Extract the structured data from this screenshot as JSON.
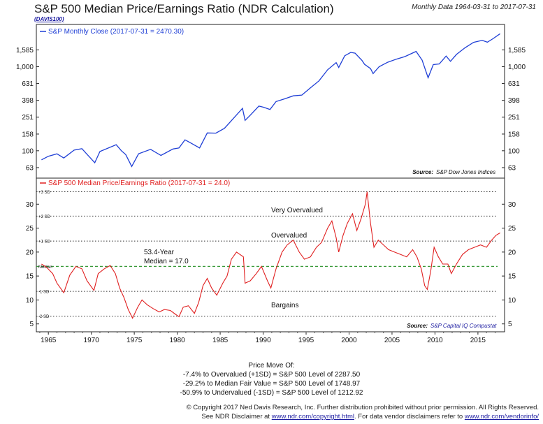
{
  "header": {
    "title": "S&P 500 Median Price/Earnings Ratio (NDR Calculation)",
    "code": "(DAVIS100)",
    "range": "Monthly Data 1964-03-31 to 2017-07-31"
  },
  "chart_data": [
    {
      "type": "line",
      "title": "",
      "scale": "log",
      "ylim": [
        52,
        2300
      ],
      "xlim": [
        1963.6,
        2018.1
      ],
      "y_ticks": [
        "63",
        "100",
        "158",
        "251",
        "398",
        "631",
        "1,000",
        "1,585"
      ],
      "y_tick_values": [
        63,
        100,
        158,
        251,
        398,
        631,
        1000,
        1585
      ],
      "grid": false,
      "legend": "top-left",
      "legend_label": "S&P Monthly Close (2017-07-31 = 2470.30)",
      "source_label": "Source:",
      "source_text": "S&P Dow Jones Indices",
      "series": [
        {
          "name": "S&P Monthly Close",
          "color": "#1f3fd6",
          "x": [
            1964.2,
            1965.0,
            1966.0,
            1966.8,
            1968.0,
            1968.9,
            1970.4,
            1971.0,
            1972.9,
            1973.5,
            1974.0,
            1974.7,
            1975.5,
            1976.9,
            1978.1,
            1979.5,
            1980.2,
            1980.9,
            1981.5,
            1982.6,
            1983.5,
            1984.5,
            1985.5,
            1986.5,
            1987.6,
            1987.9,
            1988.5,
            1989.5,
            1990.0,
            1990.8,
            1991.5,
            1992.5,
            1993.5,
            1994.5,
            1995.5,
            1996.5,
            1997.5,
            1998.5,
            1998.8,
            1999.5,
            2000.2,
            2000.7,
            2001.5,
            2001.8,
            2002.5,
            2002.8,
            2003.5,
            2004.5,
            2005.5,
            2006.5,
            2007.8,
            2008.5,
            2009.2,
            2009.8,
            2010.5,
            2011.3,
            2011.8,
            2012.5,
            2013.5,
            2014.5,
            2015.5,
            2016.1,
            2016.8,
            2017.58
          ],
          "values": [
            78,
            86,
            92,
            82,
            102,
            106,
            72,
            98,
            118,
            100,
            90,
            65,
            92,
            104,
            88,
            105,
            108,
            135,
            125,
            108,
            163,
            162,
            185,
            240,
            320,
            230,
            265,
            340,
            330,
            310,
            385,
            415,
            450,
            460,
            560,
            680,
            920,
            1120,
            980,
            1350,
            1480,
            1450,
            1190,
            1070,
            950,
            830,
            1000,
            1130,
            1230,
            1320,
            1520,
            1200,
            740,
            1060,
            1080,
            1340,
            1160,
            1400,
            1680,
            1950,
            2060,
            1960,
            2170,
            2470
          ]
        }
      ]
    },
    {
      "type": "line",
      "title": "",
      "ylim": [
        3.5,
        35
      ],
      "xlim": [
        1963.6,
        2018.1
      ],
      "y_ticks": [
        "5",
        "10",
        "15",
        "20",
        "25",
        "30"
      ],
      "y_tick_values": [
        5,
        10,
        15,
        20,
        25,
        30
      ],
      "x_ticks": [
        "1965",
        "1970",
        "1975",
        "1980",
        "1985",
        "1990",
        "1995",
        "2000",
        "2005",
        "2010",
        "2015"
      ],
      "x_tick_values": [
        1965,
        1970,
        1975,
        1980,
        1985,
        1990,
        1995,
        2000,
        2005,
        2010,
        2015
      ],
      "grid": false,
      "legend": "top-left",
      "legend_label": "S&P 500 Median Price/Earnings Ratio (2017-07-31 = 24.0)",
      "source_label": "Source:",
      "source_text": "S&P Capital IQ Compustat",
      "reference_lines": [
        {
          "label": "+3 SD",
          "value": 32.6,
          "style": "dotted",
          "color": "#333333"
        },
        {
          "label": "+2 SD",
          "value": 27.5,
          "style": "dotted",
          "color": "#333333"
        },
        {
          "label": "+1 SD",
          "value": 22.3,
          "style": "dotted",
          "color": "#333333"
        },
        {
          "label": "Median",
          "value": 17.0,
          "style": "dashed",
          "color": "#3a9a3a"
        },
        {
          "label": "-1 SD",
          "value": 11.8,
          "style": "dotted",
          "color": "#333333"
        },
        {
          "label": "-2 SD",
          "value": 6.6,
          "style": "dotted",
          "color": "#333333"
        }
      ],
      "annotations": {
        "very_overvalued": "Very Overvalued",
        "overvalued": "Overvalued",
        "median_line1": "53.4-Year",
        "median_line2": "Median = 17.0",
        "bargains": "Bargains"
      },
      "series": [
        {
          "name": "S&P 500 Median Price/Earnings Ratio",
          "color": "#e02020",
          "x": [
            1964.2,
            1964.8,
            1965.5,
            1966.0,
            1966.8,
            1967.5,
            1968.2,
            1968.9,
            1969.5,
            1970.3,
            1970.8,
            1971.5,
            1972.2,
            1972.8,
            1973.3,
            1973.8,
            1974.3,
            1974.8,
            1975.4,
            1975.9,
            1976.5,
            1977.2,
            1977.9,
            1978.5,
            1979.2,
            1979.8,
            1980.2,
            1980.7,
            1981.3,
            1982.0,
            1982.5,
            1983.0,
            1983.5,
            1984.0,
            1984.6,
            1985.3,
            1985.8,
            1986.3,
            1986.9,
            1987.7,
            1987.9,
            1988.5,
            1989.2,
            1989.8,
            1990.5,
            1990.9,
            1991.5,
            1992.2,
            1992.8,
            1993.5,
            1994.2,
            1994.8,
            1995.5,
            1996.2,
            1996.8,
            1997.5,
            1998.0,
            1998.5,
            1998.8,
            1999.3,
            1999.8,
            2000.4,
            2000.9,
            2001.4,
            2001.9,
            2002.1,
            2002.5,
            2002.9,
            2003.4,
            2004.0,
            2004.6,
            2005.3,
            2006.0,
            2006.7,
            2007.4,
            2007.9,
            2008.4,
            2008.8,
            2009.1,
            2009.5,
            2009.9,
            2010.4,
            2010.9,
            2011.5,
            2011.9,
            2012.5,
            2013.2,
            2013.9,
            2014.6,
            2015.3,
            2016.0,
            2016.6,
            2017.1,
            2017.58
          ],
          "values": [
            17.5,
            16.8,
            15.5,
            13.5,
            11.5,
            15.2,
            17.0,
            16.5,
            14.0,
            12.0,
            15.5,
            16.5,
            17.2,
            15.5,
            12.5,
            10.5,
            8.0,
            6.2,
            8.5,
            10.0,
            9.0,
            8.2,
            7.5,
            8.0,
            7.8,
            7.0,
            6.5,
            8.5,
            8.8,
            7.2,
            9.5,
            13.0,
            14.5,
            12.5,
            11.0,
            13.5,
            15.0,
            18.5,
            20.0,
            19.0,
            13.5,
            14.0,
            15.5,
            17.0,
            14.0,
            12.5,
            16.5,
            20.0,
            21.5,
            22.5,
            20.0,
            18.5,
            19.0,
            21.0,
            22.0,
            25.0,
            26.5,
            23.0,
            20.0,
            23.5,
            26.0,
            28.0,
            24.5,
            27.0,
            30.0,
            32.6,
            26.0,
            21.0,
            22.5,
            21.5,
            20.5,
            20.0,
            19.5,
            19.0,
            20.5,
            19.0,
            16.5,
            13.0,
            12.2,
            16.0,
            21.0,
            19.0,
            17.5,
            17.5,
            15.5,
            17.5,
            19.5,
            20.5,
            21.0,
            21.5,
            21.0,
            22.5,
            23.5,
            24.0
          ]
        }
      ]
    }
  ],
  "price_move": {
    "title": "Price Move Of:",
    "line1": "-7.4% to Overvalued (+1SD) = S&P 500 Level of 2287.50",
    "line2": "-29.2% to Median Fair Value = S&P 500 Level of 1748.97",
    "line3": "-50.9% to Undervalued (-1SD) = S&P 500 Level of 1212.92"
  },
  "footer": {
    "copyright": "© Copyright 2017 Ned Davis Research, Inc. Further distribution prohibited without prior permission. All Rights Reserved.",
    "disclaimer_pre": "See NDR Disclaimer at ",
    "link1": "www.ndr.com/copyright.html",
    "disclaimer_mid": ". For data vendor disclaimers refer to ",
    "link2": "www.ndr.com/vendorinfo/"
  }
}
